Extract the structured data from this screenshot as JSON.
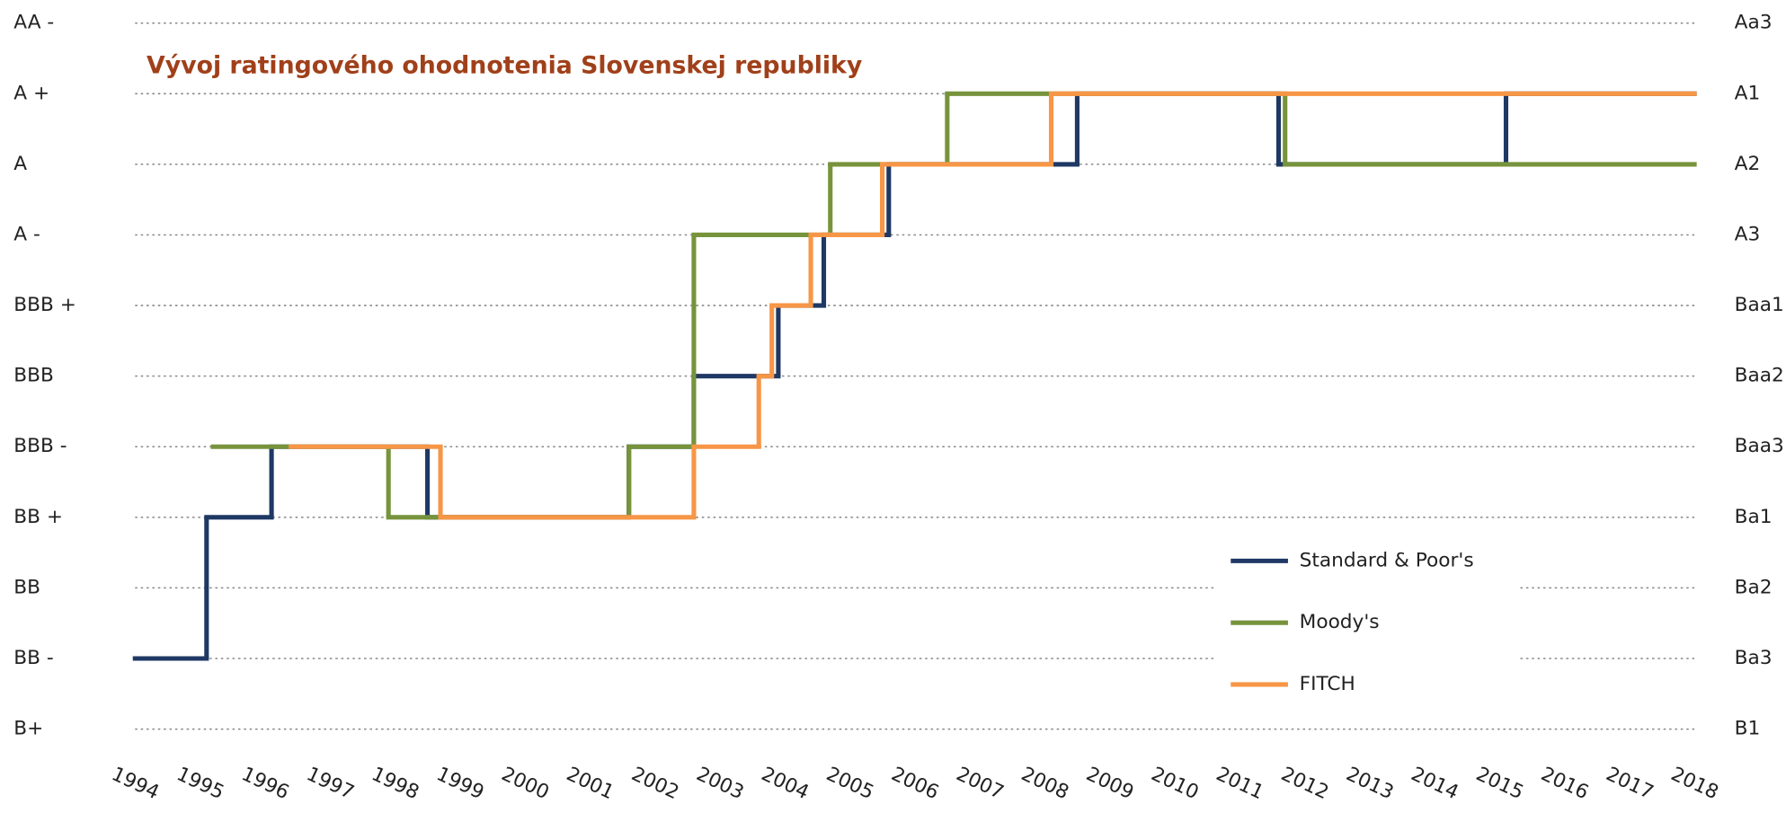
{
  "chart_data": {
    "type": "step",
    "title": "Vývoj ratingového ohodnotenia Slovenskej republiky",
    "xlim": [
      1994,
      2018
    ],
    "xticks": [
      1994,
      1995,
      1996,
      1997,
      1998,
      1999,
      2000,
      2001,
      2002,
      2003,
      2004,
      2005,
      2006,
      2007,
      2008,
      2009,
      2010,
      2011,
      2012,
      2013,
      2014,
      2015,
      2016,
      2017,
      2018
    ],
    "ylim": [
      0,
      10
    ],
    "yticks": [
      {
        "value": 0,
        "label": "B+"
      },
      {
        "value": 1,
        "label": "BB -"
      },
      {
        "value": 2,
        "label": "BB"
      },
      {
        "value": 3,
        "label": "BB +"
      },
      {
        "value": 4,
        "label": "BBB -"
      },
      {
        "value": 5,
        "label": "BBB"
      },
      {
        "value": 6,
        "label": "BBB +"
      },
      {
        "value": 7,
        "label": "A -"
      },
      {
        "value": 8,
        "label": "A"
      },
      {
        "value": 9,
        "label": "A +"
      },
      {
        "value": 10,
        "label": "AA -"
      }
    ],
    "y2lim": [
      0,
      10
    ],
    "y2ticks": [
      {
        "value": 0,
        "label": "B1"
      },
      {
        "value": 1,
        "label": "Ba3"
      },
      {
        "value": 2,
        "label": "Ba2"
      },
      {
        "value": 3,
        "label": "Ba1"
      },
      {
        "value": 4,
        "label": "Baa3"
      },
      {
        "value": 5,
        "label": "Baa2"
      },
      {
        "value": 6,
        "label": "Baa1"
      },
      {
        "value": 7,
        "label": "A3"
      },
      {
        "value": 8,
        "label": "A2"
      },
      {
        "value": 9,
        "label": "A1"
      },
      {
        "value": 10,
        "label": "Aa3"
      }
    ],
    "grid": true,
    "legend": "lower right",
    "series": [
      {
        "name": "Standard & Poor's",
        "color": "#1f3864",
        "x": [
          1994,
          1995.1,
          1996.1,
          1998.5,
          2001.6,
          2002.6,
          2003.9,
          2004.6,
          2005.6,
          2008.5,
          2011.6,
          2015.1,
          2018
        ],
        "values": [
          1,
          3,
          4,
          3,
          4,
          5,
          6,
          7,
          8,
          9,
          8,
          9,
          9
        ]
      },
      {
        "name": "Moody's",
        "color": "#77933c",
        "x": [
          1995.2,
          1997.9,
          2001.6,
          2002.6,
          2004.7,
          2006.5,
          2011.7,
          2018
        ],
        "values": [
          4,
          3,
          4,
          7,
          8,
          9,
          8,
          8
        ]
      },
      {
        "name": "FITCH",
        "color": "#f79646",
        "x": [
          1996.4,
          1998.7,
          2002.6,
          2003.6,
          2003.8,
          2004.4,
          2005.5,
          2008.1,
          2018
        ],
        "values": [
          4,
          3,
          4,
          5,
          6,
          7,
          8,
          9,
          9
        ]
      }
    ]
  }
}
